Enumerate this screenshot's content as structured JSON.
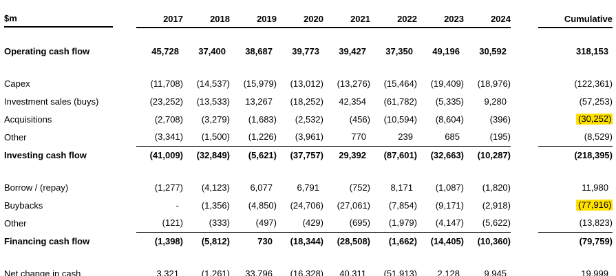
{
  "table": {
    "unit_label": "$m",
    "years": [
      "2017",
      "2018",
      "2019",
      "2020",
      "2021",
      "2022",
      "2023",
      "2024"
    ],
    "cumulative_label": "Cumulative",
    "highlight_color": "#ffe100",
    "rows": [
      {
        "label": "Operating cash flow",
        "values": [
          "45,728",
          "37,400",
          "38,687",
          "39,773",
          "39,427",
          "37,350",
          "49,196",
          "30,592"
        ],
        "cumulative": "318,153",
        "bold": true,
        "sum_line": false,
        "highlight_cumulative": false,
        "gap_before": true
      },
      {
        "label": "Capex",
        "values": [
          "(11,708)",
          "(14,537)",
          "(15,979)",
          "(13,012)",
          "(13,276)",
          "(15,464)",
          "(19,409)",
          "(18,976)"
        ],
        "cumulative": "(122,361)",
        "bold": false,
        "sum_line": false,
        "highlight_cumulative": false,
        "gap_before": true
      },
      {
        "label": "Investment sales (buys)",
        "values": [
          "(23,252)",
          "(13,533)",
          "13,267",
          "(18,252)",
          "42,354",
          "(61,782)",
          "(5,335)",
          "9,280"
        ],
        "cumulative": "(57,253)",
        "bold": false,
        "sum_line": false,
        "highlight_cumulative": false,
        "gap_before": false
      },
      {
        "label": "Acquisitions",
        "values": [
          "(2,708)",
          "(3,279)",
          "(1,683)",
          "(2,532)",
          "(456)",
          "(10,594)",
          "(8,604)",
          "(396)"
        ],
        "cumulative": "(30,252)",
        "bold": false,
        "sum_line": false,
        "highlight_cumulative": true,
        "gap_before": false
      },
      {
        "label": "Other",
        "values": [
          "(3,341)",
          "(1,500)",
          "(1,226)",
          "(3,961)",
          "770",
          "239",
          "685",
          "(195)"
        ],
        "cumulative": "(8,529)",
        "bold": false,
        "sum_line": true,
        "highlight_cumulative": false,
        "gap_before": false
      },
      {
        "label": "Investing cash flow",
        "values": [
          "(41,009)",
          "(32,849)",
          "(5,621)",
          "(37,757)",
          "29,392",
          "(87,601)",
          "(32,663)",
          "(10,287)"
        ],
        "cumulative": "(218,395)",
        "bold": true,
        "sum_line": false,
        "highlight_cumulative": false,
        "gap_before": false
      },
      {
        "label": "Borrow / (repay)",
        "values": [
          "(1,277)",
          "(4,123)",
          "6,077",
          "6,791",
          "(752)",
          "8,171",
          "(1,087)",
          "(1,820)"
        ],
        "cumulative": "11,980",
        "bold": false,
        "sum_line": false,
        "highlight_cumulative": false,
        "gap_before": true
      },
      {
        "label": "Buybacks",
        "values": [
          "-",
          "(1,356)",
          "(4,850)",
          "(24,706)",
          "(27,061)",
          "(7,854)",
          "(9,171)",
          "(2,918)"
        ],
        "cumulative": "(77,916)",
        "bold": false,
        "sum_line": false,
        "highlight_cumulative": true,
        "gap_before": false
      },
      {
        "label": "Other",
        "values": [
          "(121)",
          "(333)",
          "(497)",
          "(429)",
          "(695)",
          "(1,979)",
          "(4,147)",
          "(5,622)"
        ],
        "cumulative": "(13,823)",
        "bold": false,
        "sum_line": true,
        "highlight_cumulative": false,
        "gap_before": false
      },
      {
        "label": "Financing cash flow",
        "values": [
          "(1,398)",
          "(5,812)",
          "730",
          "(18,344)",
          "(28,508)",
          "(1,662)",
          "(14,405)",
          "(10,360)"
        ],
        "cumulative": "(79,759)",
        "bold": true,
        "sum_line": false,
        "highlight_cumulative": false,
        "gap_before": false
      },
      {
        "label": "Net change in cash",
        "values": [
          "3,321",
          "(1,261)",
          "33,796",
          "(16,328)",
          "40,311",
          "(51,913)",
          "2,128",
          "9,945"
        ],
        "cumulative": "19,999",
        "bold": false,
        "sum_line": false,
        "highlight_cumulative": false,
        "gap_before": true
      }
    ]
  }
}
